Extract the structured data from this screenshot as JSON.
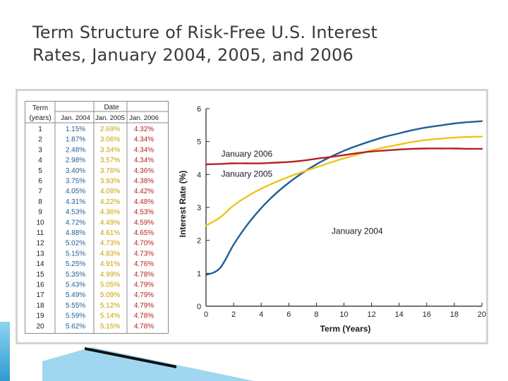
{
  "slide": {
    "title_line1": "Term Structure of Risk-Free U.S. Interest",
    "title_line2": "Rates, January 2004, 2005, and 2006"
  },
  "table": {
    "term_header": [
      "Term",
      "(years)"
    ],
    "date_header": "Date",
    "year_headers": [
      "Jan. 2004",
      "Jan. 2005",
      "Jan. 2006"
    ],
    "terms": [
      "1",
      "2",
      "3",
      "4",
      "5",
      "6",
      "7",
      "8",
      "9",
      "10",
      "11",
      "12",
      "13",
      "14",
      "15",
      "16",
      "17",
      "18",
      "19",
      "20"
    ],
    "jan2004": [
      "1.15%",
      "1.87%",
      "2.48%",
      "2.98%",
      "3.40%",
      "3.75%",
      "4.05%",
      "4.31%",
      "4.53%",
      "4.72%",
      "4.88%",
      "5.02%",
      "5.15%",
      "5.25%",
      "5.35%",
      "5.43%",
      "5.49%",
      "5.55%",
      "5.59%",
      "5.62%"
    ],
    "jan2005": [
      "2.69%",
      "3.06%",
      "3.34%",
      "3.57%",
      "3.76%",
      "3.93%",
      "4.08%",
      "4.22%",
      "4.36%",
      "4.49%",
      "4.61%",
      "4.73%",
      "4.83%",
      "4.91%",
      "4.99%",
      "5.05%",
      "5.09%",
      "5.12%",
      "5.14%",
      "5.15%"
    ],
    "jan2006": [
      "4.32%",
      "4.34%",
      "4.34%",
      "4.34%",
      "4.36%",
      "4.38%",
      "4.42%",
      "4.48%",
      "4.53%",
      "4.59%",
      "4.65%",
      "4.70%",
      "4.73%",
      "4.76%",
      "4.78%",
      "4.79%",
      "4.79%",
      "4.79%",
      "4.78%",
      "4.78%"
    ],
    "colors": {
      "jan2004": "#1f5e96",
      "jan2005": "#c9a100",
      "jan2006": "#b5221f",
      "text": "#1a1a1a"
    }
  },
  "chart_data": {
    "type": "line",
    "xlabel": "Term (Years)",
    "ylabel": "Interest Rate (%)",
    "xlim": [
      0,
      20
    ],
    "ylim": [
      0,
      6
    ],
    "xticks": [
      0,
      2,
      4,
      6,
      8,
      10,
      12,
      14,
      16,
      18,
      20
    ],
    "yticks": [
      0,
      1,
      2,
      3,
      4,
      5,
      6
    ],
    "grid": false,
    "series": [
      {
        "name": "January 2004",
        "color": "#1f5e96",
        "x": [
          0,
          1,
          2,
          3,
          4,
          5,
          6,
          7,
          8,
          9,
          10,
          11,
          12,
          13,
          14,
          15,
          16,
          17,
          18,
          19,
          20
        ],
        "y": [
          0.95,
          1.15,
          1.87,
          2.48,
          2.98,
          3.4,
          3.75,
          4.05,
          4.31,
          4.53,
          4.72,
          4.88,
          5.02,
          5.15,
          5.25,
          5.35,
          5.43,
          5.49,
          5.55,
          5.59,
          5.62
        ]
      },
      {
        "name": "January 2005",
        "color": "#f0c419",
        "x": [
          0,
          1,
          2,
          3,
          4,
          5,
          6,
          7,
          8,
          9,
          10,
          11,
          12,
          13,
          14,
          15,
          16,
          17,
          18,
          19,
          20
        ],
        "y": [
          2.45,
          2.69,
          3.06,
          3.34,
          3.57,
          3.76,
          3.93,
          4.08,
          4.22,
          4.36,
          4.49,
          4.61,
          4.73,
          4.83,
          4.91,
          4.99,
          5.05,
          5.09,
          5.12,
          5.14,
          5.15
        ]
      },
      {
        "name": "January 2006",
        "color": "#b5221f",
        "x": [
          0,
          1,
          2,
          3,
          4,
          5,
          6,
          7,
          8,
          9,
          10,
          11,
          12,
          13,
          14,
          15,
          16,
          17,
          18,
          19,
          20
        ],
        "y": [
          4.31,
          4.32,
          4.34,
          4.34,
          4.34,
          4.36,
          4.38,
          4.42,
          4.48,
          4.53,
          4.59,
          4.65,
          4.7,
          4.73,
          4.76,
          4.78,
          4.79,
          4.79,
          4.79,
          4.78,
          4.78
        ]
      }
    ]
  }
}
